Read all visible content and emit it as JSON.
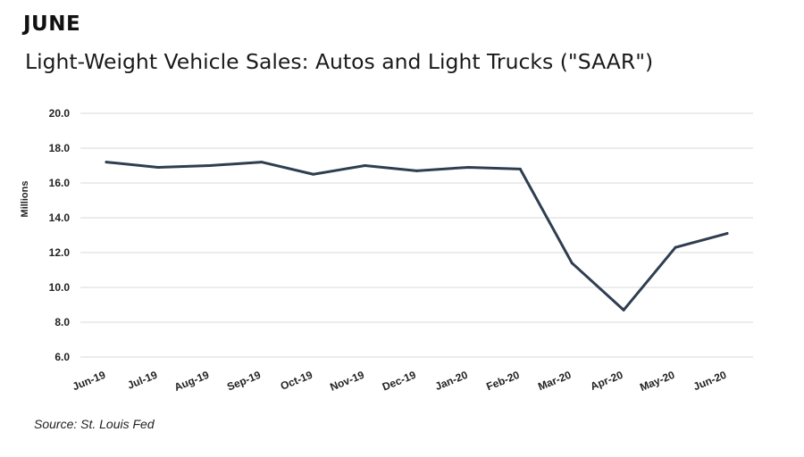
{
  "header": {
    "heading": "JUNE",
    "title": "Light-Weight Vehicle Sales: Autos and Light Trucks (\"SAAR\")"
  },
  "footer": {
    "source": "Source: St. Louis Fed"
  },
  "chart_data": {
    "type": "line",
    "title": "Light-Weight Vehicle Sales: Autos and Light Trucks (\"SAAR\")",
    "xlabel": "",
    "ylabel": "Millions",
    "categories": [
      "Jun-19",
      "Jul-19",
      "Aug-19",
      "Sep-19",
      "Oct-19",
      "Nov-19",
      "Dec-19",
      "Jan-20",
      "Feb-20",
      "Mar-20",
      "Apr-20",
      "May-20",
      "Jun-20"
    ],
    "series": [
      {
        "name": "Light-Weight Vehicle Sales",
        "values": [
          17.2,
          16.9,
          17.0,
          17.2,
          16.5,
          17.0,
          16.7,
          16.9,
          16.8,
          11.4,
          8.7,
          12.3,
          13.1
        ],
        "color": "#2e3e50"
      }
    ],
    "ylim": [
      6.0,
      20.0
    ],
    "yticks": [
      "6.0",
      "8.0",
      "10.0",
      "12.0",
      "14.0",
      "16.0",
      "18.0",
      "20.0"
    ],
    "grid": true,
    "gridColor": "#d9d9d9"
  }
}
